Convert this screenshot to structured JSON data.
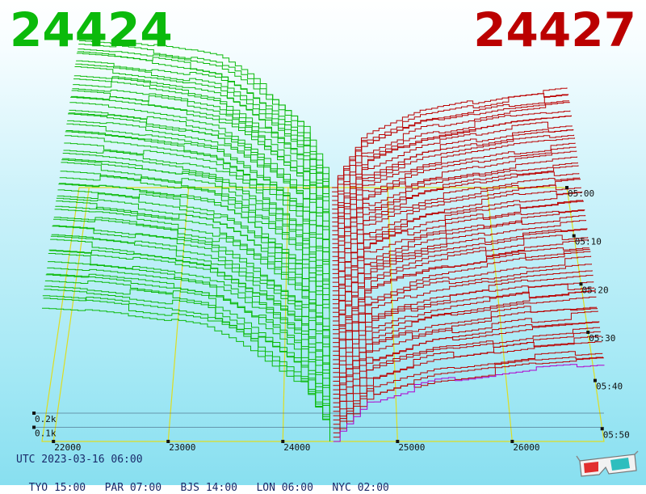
{
  "header": {
    "bid_price": "24424",
    "ask_price": "24427"
  },
  "footer": {
    "utc": "UTC 2023-03-16 06:00",
    "zones": [
      "TYO 15:00",
      "PAR 07:00",
      "BJS 14:00",
      "LON 06:00",
      "NYC 02:00"
    ]
  },
  "icons": {
    "glasses": "3d-glasses-icon"
  },
  "colors": {
    "bid": "#0bba0b",
    "ask": "#bb0000",
    "grid": "#dddd22",
    "base": "#b000cc"
  },
  "chart_data": {
    "type": "area",
    "view": "3d-depth-of-market",
    "price_ticks": [
      "22000",
      "23000",
      "24000",
      "25000",
      "26000"
    ],
    "volume_ticks": [
      "0.1k",
      "0.2k"
    ],
    "time_ticks": [
      "05:00",
      "05:10",
      "05:20",
      "05:30",
      "05:40",
      "05:50"
    ],
    "price_range": [
      21900,
      26800
    ],
    "volume_range": [
      0,
      1.6
    ],
    "snapshot_count": 60,
    "bid_side": {
      "price_range": [
        21900,
        24410
      ],
      "cumulative_volume_k": [
        1.35,
        1.33,
        1.3,
        1.26,
        1.22,
        1.17,
        1.02,
        0.82,
        0.6,
        0.05
      ]
    },
    "ask_side": {
      "price_range": [
        24440,
        26800
      ],
      "cumulative_volume_k": [
        0.05,
        0.62,
        0.78,
        0.92,
        0.98,
        1.05,
        1.12,
        1.16,
        1.2
      ]
    }
  }
}
